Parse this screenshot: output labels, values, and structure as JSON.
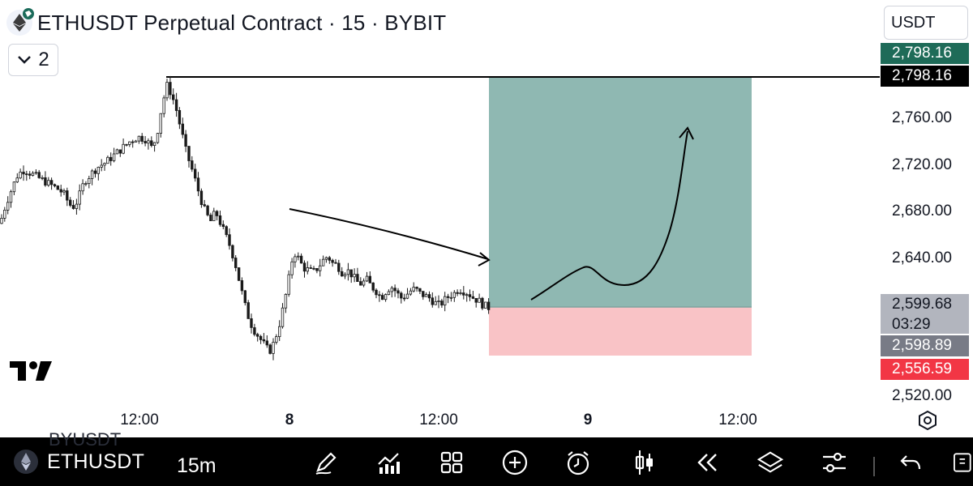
{
  "header": {
    "title": "ETHUSDT Perpetual Contract · 15 · BYBIT",
    "collapse_count": "2",
    "currency": "USDT"
  },
  "price_axis": {
    "ticks": [
      "2,760.00",
      "2,720.00",
      "2,680.00",
      "2,640.00",
      "2,520.00"
    ],
    "tags": {
      "take_profit": "2,798.16",
      "horizontal_line": "2,798.16",
      "last_price": "2,599.68",
      "countdown": "03:29",
      "entry": "2,598.89",
      "stop_loss": "2,556.59"
    }
  },
  "time_axis": {
    "labels": [
      "12:00",
      "8",
      "12:00",
      "9",
      "12:00"
    ]
  },
  "colors": {
    "profit_zone": "#8fb8b2",
    "loss_zone": "#f9c3c6",
    "tp_tag": "#1e6b58",
    "sl_tag": "#f23645",
    "candle": "#1a1a1a",
    "toolbar_bg": "#000000"
  },
  "chart_data": {
    "type": "candlestick",
    "instrument": "ETHUSDT",
    "timeframe": "15",
    "ylim": [
      2520,
      2800
    ],
    "price_path": [
      [
        0,
        2670
      ],
      [
        8,
        2688
      ],
      [
        16,
        2702
      ],
      [
        22,
        2712
      ],
      [
        30,
        2716
      ],
      [
        40,
        2712
      ],
      [
        50,
        2708
      ],
      [
        60,
        2704
      ],
      [
        70,
        2700
      ],
      [
        78,
        2696
      ],
      [
        86,
        2686
      ],
      [
        92,
        2684
      ],
      [
        98,
        2694
      ],
      [
        104,
        2706
      ],
      [
        112,
        2712
      ],
      [
        120,
        2718
      ],
      [
        130,
        2722
      ],
      [
        140,
        2728
      ],
      [
        150,
        2734
      ],
      [
        160,
        2740
      ],
      [
        170,
        2744
      ],
      [
        180,
        2742
      ],
      [
        188,
        2734
      ],
      [
        194,
        2748
      ],
      [
        200,
        2772
      ],
      [
        206,
        2788
      ],
      [
        212,
        2780
      ],
      [
        218,
        2766
      ],
      [
        224,
        2748
      ],
      [
        230,
        2730
      ],
      [
        236,
        2718
      ],
      [
        242,
        2704
      ],
      [
        248,
        2690
      ],
      [
        254,
        2678
      ],
      [
        260,
        2672
      ],
      [
        266,
        2680
      ],
      [
        272,
        2670
      ],
      [
        278,
        2660
      ],
      [
        284,
        2650
      ],
      [
        290,
        2636
      ],
      [
        296,
        2618
      ],
      [
        302,
        2600
      ],
      [
        308,
        2586
      ],
      [
        314,
        2578
      ],
      [
        320,
        2572
      ],
      [
        326,
        2566
      ],
      [
        332,
        2560
      ],
      [
        338,
        2568
      ],
      [
        344,
        2582
      ],
      [
        350,
        2600
      ],
      [
        356,
        2622
      ],
      [
        362,
        2646
      ],
      [
        368,
        2640
      ],
      [
        374,
        2632
      ],
      [
        380,
        2630
      ],
      [
        386,
        2628
      ],
      [
        392,
        2632
      ],
      [
        398,
        2638
      ],
      [
        404,
        2642
      ],
      [
        410,
        2636
      ],
      [
        416,
        2634
      ],
      [
        422,
        2628
      ],
      [
        428,
        2630
      ],
      [
        434,
        2626
      ],
      [
        440,
        2620
      ],
      [
        446,
        2618
      ],
      [
        452,
        2622
      ],
      [
        458,
        2616
      ],
      [
        464,
        2612
      ],
      [
        470,
        2606
      ],
      [
        476,
        2612
      ],
      [
        482,
        2616
      ],
      [
        488,
        2612
      ],
      [
        494,
        2606
      ],
      [
        500,
        2608
      ],
      [
        506,
        2612
      ],
      [
        512,
        2614
      ],
      [
        518,
        2610
      ],
      [
        524,
        2608
      ],
      [
        530,
        2606
      ],
      [
        536,
        2602
      ],
      [
        542,
        2600
      ],
      [
        548,
        2604
      ],
      [
        554,
        2608
      ],
      [
        560,
        2610
      ],
      [
        566,
        2614
      ],
      [
        572,
        2612
      ],
      [
        578,
        2610
      ],
      [
        584,
        2606
      ],
      [
        590,
        2604
      ],
      [
        596,
        2600
      ],
      [
        602,
        2598
      ]
    ],
    "horizontal_line": 2798.16,
    "position": {
      "entry": 2598.89,
      "take_profit": 2798.16,
      "stop_loss": 2556.59,
      "last_price": 2599.68
    }
  },
  "bottom_toolbar": {
    "symbol": "ETHUSDT",
    "interval": "15m",
    "ghost_symbol": "BYUSDT",
    "icons": [
      "pen-icon",
      "indicators-icon",
      "grid-icon",
      "add-circle-icon",
      "alarm-icon",
      "candlestick-icon",
      "replay-icon",
      "layers-icon",
      "sliders-icon",
      "undo-icon"
    ]
  }
}
